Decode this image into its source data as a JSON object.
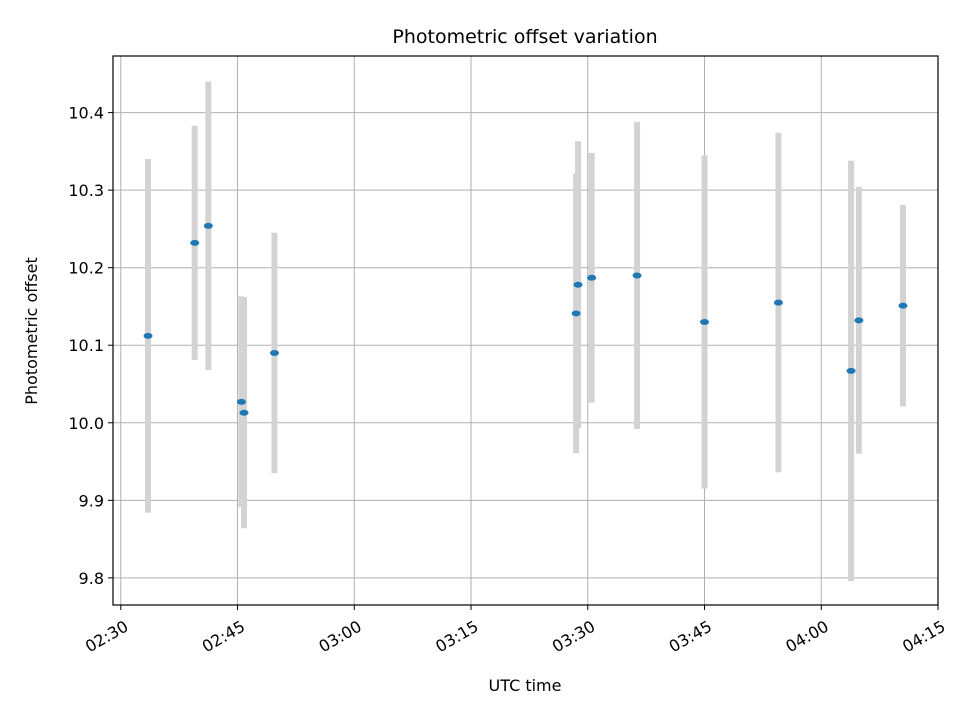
{
  "chart_data": {
    "type": "scatter",
    "title": "Photometric offset variation",
    "xlabel": "UTC time",
    "ylabel": "Photometric offset",
    "x_axis_type": "time",
    "x_ticks": [
      "02:30",
      "02:45",
      "03:00",
      "03:15",
      "03:30",
      "03:45",
      "04:00",
      "04:15"
    ],
    "y_ticks": [
      "9.8",
      "9.9",
      "10.0",
      "10.1",
      "10.2",
      "10.3",
      "10.4"
    ],
    "xlim": [
      "02:29",
      "04:15"
    ],
    "ylim": [
      9.765,
      10.473
    ],
    "grid": true,
    "series": [
      {
        "marker_color": "#1f77b4",
        "errorbar_color": "#d3d3d3",
        "points": [
          {
            "x": "02:33:30",
            "y": 10.112,
            "err": 0.228
          },
          {
            "x": "02:39:30",
            "y": 10.232,
            "err": 0.151
          },
          {
            "x": "02:41:15",
            "y": 10.254,
            "err": 0.186
          },
          {
            "x": "02:45:30",
            "y": 10.027,
            "err": 0.136
          },
          {
            "x": "02:45:50",
            "y": 10.013,
            "err": 0.149
          },
          {
            "x": "02:49:45",
            "y": 10.09,
            "err": 0.155
          },
          {
            "x": "03:28:30",
            "y": 10.141,
            "err": 0.18
          },
          {
            "x": "03:28:45",
            "y": 10.178,
            "err": 0.185
          },
          {
            "x": "03:30:30",
            "y": 10.187,
            "err": 0.161
          },
          {
            "x": "03:36:20",
            "y": 10.19,
            "err": 0.198
          },
          {
            "x": "03:45:00",
            "y": 10.13,
            "err": 0.215
          },
          {
            "x": "03:54:30",
            "y": 10.155,
            "err": 0.219
          },
          {
            "x": "04:03:50",
            "y": 10.067,
            "err": 0.271
          },
          {
            "x": "04:04:50",
            "y": 10.132,
            "err": 0.172
          },
          {
            "x": "04:10:30",
            "y": 10.151,
            "err": 0.13
          }
        ]
      }
    ]
  }
}
